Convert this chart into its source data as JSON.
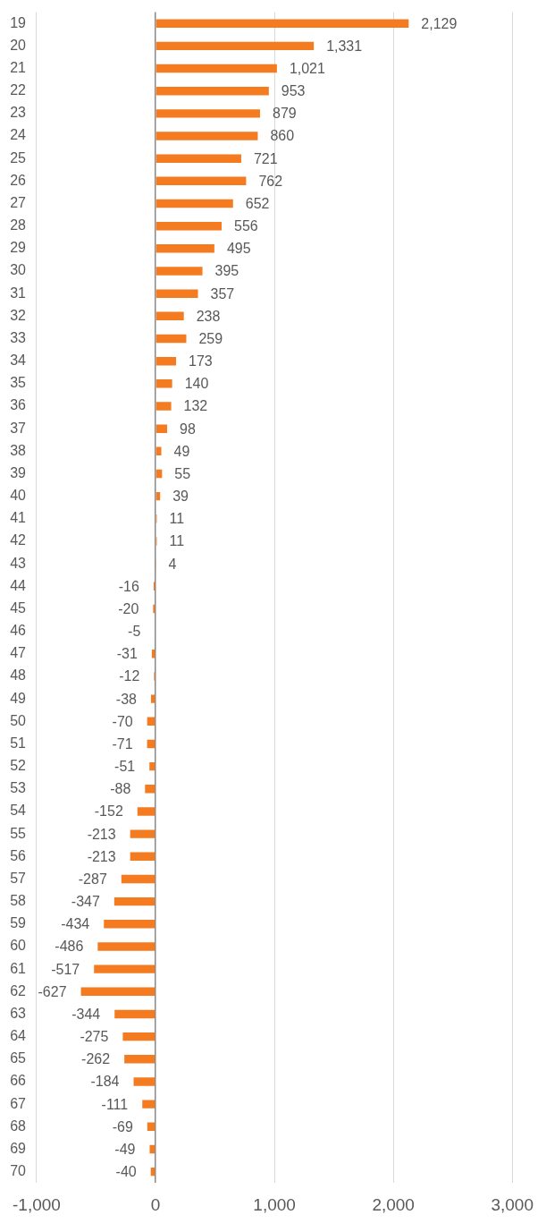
{
  "chart_data": {
    "type": "bar",
    "orientation": "horizontal",
    "categories": [
      "19",
      "20",
      "21",
      "22",
      "23",
      "24",
      "25",
      "26",
      "27",
      "28",
      "29",
      "30",
      "31",
      "32",
      "33",
      "34",
      "35",
      "36",
      "37",
      "38",
      "39",
      "40",
      "41",
      "42",
      "43",
      "44",
      "45",
      "46",
      "47",
      "48",
      "49",
      "50",
      "51",
      "52",
      "53",
      "54",
      "55",
      "56",
      "57",
      "58",
      "59",
      "60",
      "61",
      "62",
      "63",
      "64",
      "65",
      "66",
      "67",
      "68",
      "69",
      "70"
    ],
    "values": [
      2129,
      1331,
      1021,
      953,
      879,
      860,
      721,
      762,
      652,
      556,
      495,
      395,
      357,
      238,
      259,
      173,
      140,
      132,
      98,
      49,
      55,
      39,
      11,
      11,
      4,
      -16,
      -20,
      -5,
      -31,
      -12,
      -38,
      -70,
      -71,
      -51,
      -88,
      -152,
      -213,
      -213,
      -287,
      -347,
      -434,
      -486,
      -517,
      -627,
      -344,
      -275,
      -262,
      -184,
      -111,
      -69,
      -49,
      -40
    ],
    "value_labels": [
      "2,129",
      "1,331",
      "1,021",
      "953",
      "879",
      "860",
      "721",
      "762",
      "652",
      "556",
      "495",
      "395",
      "357",
      "238",
      "259",
      "173",
      "140",
      "132",
      "98",
      "49",
      "55",
      "39",
      "11",
      "11",
      "4",
      "-16",
      "-20",
      "-5",
      "-31",
      "-12",
      "-38",
      "-70",
      "-71",
      "-51",
      "-88",
      "-152",
      "-213",
      "-213",
      "-287",
      "-347",
      "-434",
      "-486",
      "-517",
      "-627",
      "-344",
      "-275",
      "-262",
      "-184",
      "-111",
      "-69",
      "-49",
      "-40"
    ],
    "color": "#f47b20",
    "xlim": [
      -1000,
      3000
    ],
    "xticks": [
      {
        "value": -1000,
        "label": "-1,000"
      },
      0,
      {
        "value": 1000,
        "label": "1,000"
      },
      {
        "value": 2000,
        "label": "2,000"
      },
      {
        "value": 3000,
        "label": "3,000"
      }
    ],
    "grid": "x",
    "legend": false
  }
}
